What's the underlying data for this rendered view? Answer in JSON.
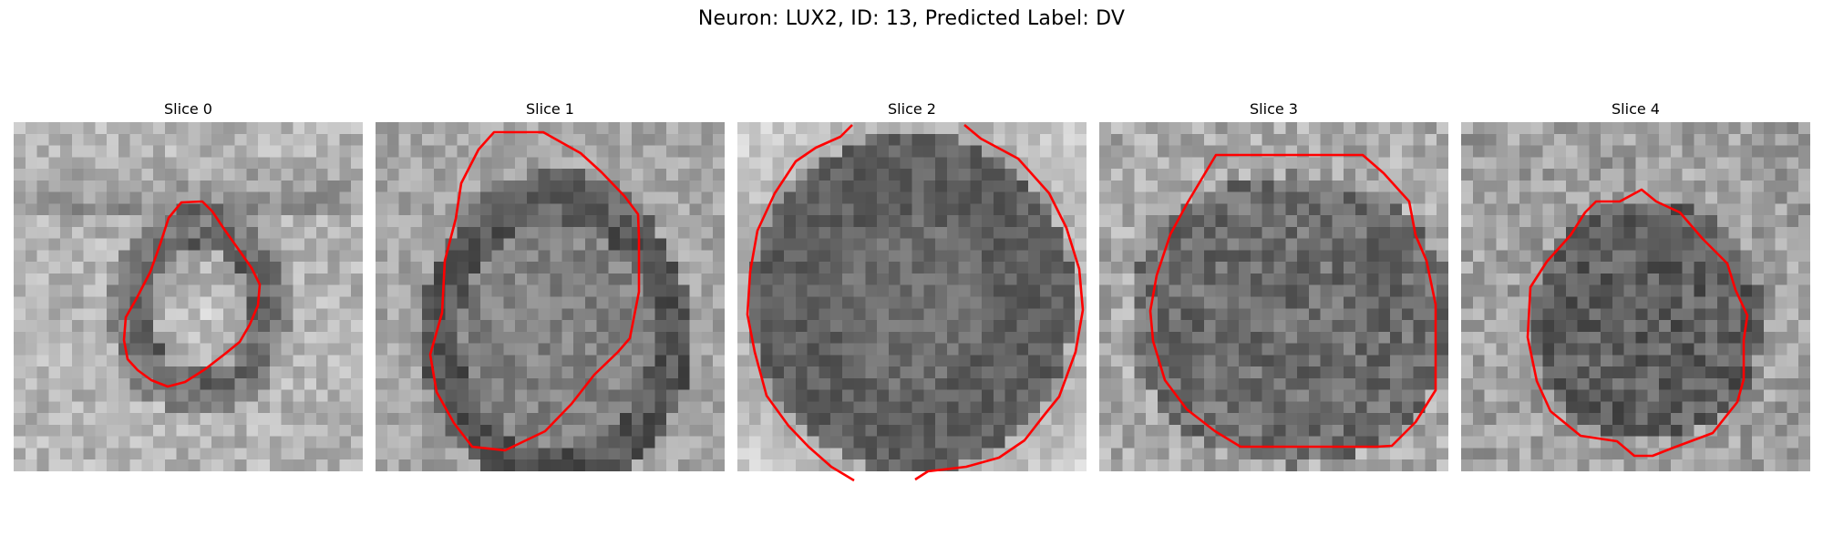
{
  "figure": {
    "title": "Neuron: LUX2, ID: 13, Predicted Label: DV",
    "contour_color": "#ff0000",
    "colormap": "grayscale"
  },
  "panels": [
    {
      "title": "Slice 0"
    },
    {
      "title": "Slice 1"
    },
    {
      "title": "Slice 2"
    },
    {
      "title": "Slice 3"
    },
    {
      "title": "Slice 4"
    }
  ]
}
